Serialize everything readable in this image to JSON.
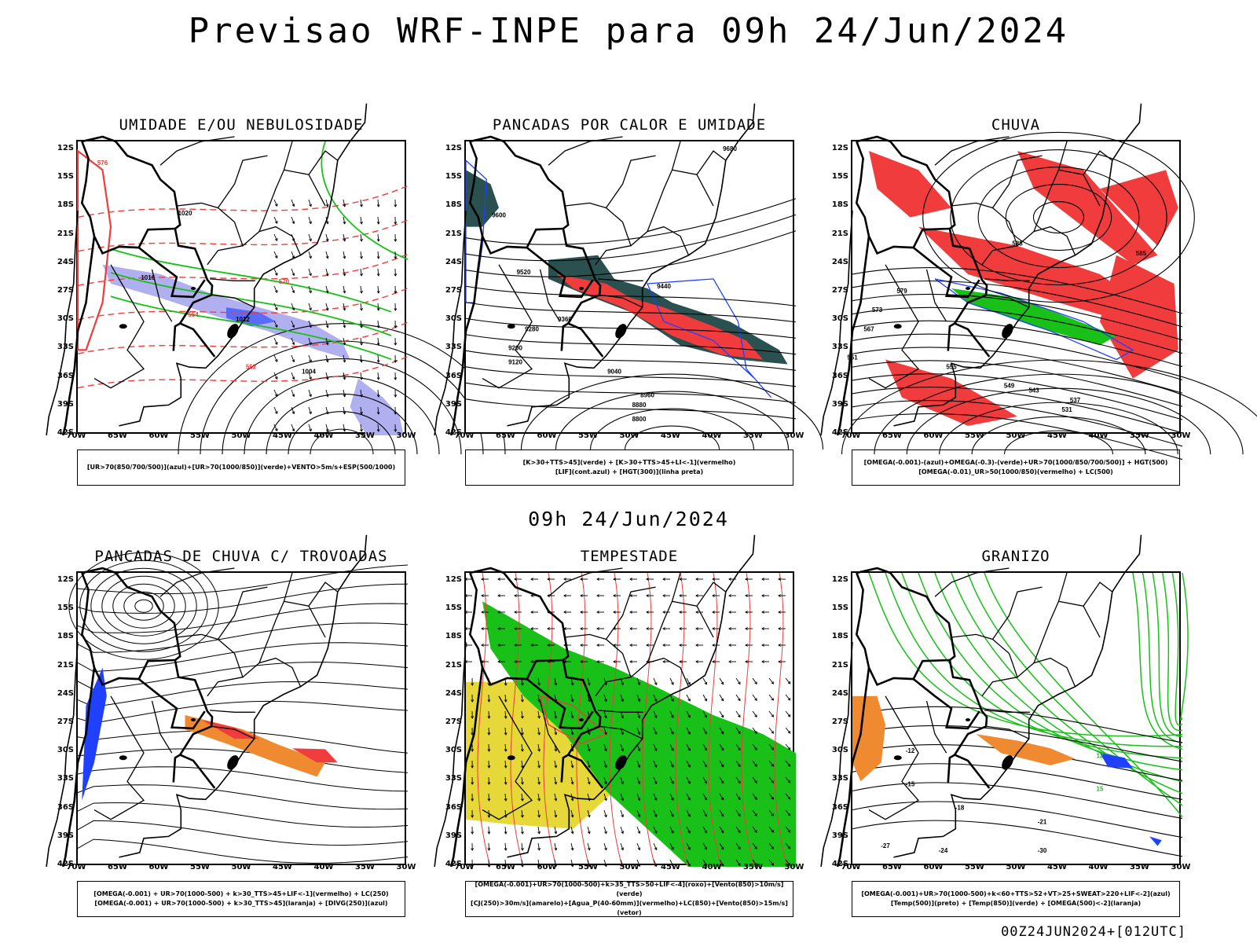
{
  "title": "Previsao WRF-INPE  para 09h 24/Jun/2024",
  "mid_title": "09h 24/Jun/2024",
  "footer": "00Z24JUN2024+[012UTC]",
  "lat_labels": [
    "12S",
    "15S",
    "18S",
    "21S",
    "24S",
    "27S",
    "30S",
    "33S",
    "36S",
    "39S",
    "42S"
  ],
  "lon_labels": [
    "70W",
    "65W",
    "60W",
    "55W",
    "50W",
    "45W",
    "40W",
    "35W",
    "30W"
  ],
  "colors": {
    "red": "#f03c3c",
    "green": "#18c018",
    "blue": "#2040ff",
    "lavender": "#b0b0f0",
    "darkteal": "#2a5050",
    "yellow": "#e6d838",
    "orange": "#f08a30"
  },
  "panels": [
    {
      "title": "UMIDADE E/OU NEBULOSIDADE",
      "legend": [
        "[UR>70(850/700/500)](azul)+[UR>70(1000/850)](verde)+VENTO>5m/s+ESP(500/1000)"
      ],
      "labels": [
        {
          "t": "1020",
          "k": "iso"
        },
        {
          "t": "1016",
          "k": "iso"
        },
        {
          "t": "1012",
          "k": "iso"
        },
        {
          "t": "1004",
          "k": "iso"
        },
        {
          "t": "576",
          "k": "red"
        },
        {
          "t": "570",
          "k": "red"
        },
        {
          "t": "564",
          "k": "red"
        },
        {
          "t": "552",
          "k": "red"
        }
      ]
    },
    {
      "title": "PANCADAS POR CALOR E UMIDADE",
      "legend": [
        "[K>30+TTS>45](verde) + [K>30+TTS>45+LI<-1](vermelho)",
        "[LIF](cont.azul) + [HGT(300)](linha preta)"
      ],
      "labels": [
        {
          "t": "9680",
          "k": "iso"
        },
        {
          "t": "9600",
          "k": "iso"
        },
        {
          "t": "9520",
          "k": "iso"
        },
        {
          "t": "9440",
          "k": "iso"
        },
        {
          "t": "9360",
          "k": "iso"
        },
        {
          "t": "9280",
          "k": "iso"
        },
        {
          "t": "9200",
          "k": "iso"
        },
        {
          "t": "9120",
          "k": "iso"
        },
        {
          "t": "9040",
          "k": "iso"
        },
        {
          "t": "8960",
          "k": "iso"
        },
        {
          "t": "8880",
          "k": "iso"
        },
        {
          "t": "8800",
          "k": "iso"
        }
      ]
    },
    {
      "title": "CHUVA",
      "legend": [
        "[OMEGA(-0.001)-(azul)+OMEGA(-0.3)-(verde)+UR>70(1000/850/700/500)] + HGT(500)",
        "[OMEGA(-0.01)_UR>50(1000/850)(vermelho) + LC(500)"
      ],
      "labels": [
        {
          "t": "588",
          "k": "iso"
        },
        {
          "t": "585",
          "k": "iso"
        },
        {
          "t": "579",
          "k": "iso"
        },
        {
          "t": "573",
          "k": "iso"
        },
        {
          "t": "567",
          "k": "iso"
        },
        {
          "t": "561",
          "k": "iso"
        },
        {
          "t": "555",
          "k": "iso"
        },
        {
          "t": "549",
          "k": "iso"
        },
        {
          "t": "543",
          "k": "iso"
        },
        {
          "t": "537",
          "k": "iso"
        },
        {
          "t": "531",
          "k": "iso"
        }
      ]
    },
    {
      "title": "PANCADAS DE CHUVA C/ TROVOADAS",
      "legend": [
        "[OMEGA(-0.001) + UR>70(1000-500) + k>30_TTS>45+LIF<-1](vermelho) + LC(250)",
        "[OMEGA(-0.001) + UR>70(1000-500) + k>30_TTS>45](laranja) + [DIVG(250)](azul)"
      ],
      "labels": []
    },
    {
      "title": "TEMPESTADE",
      "legend": [
        "[OMEGA(-0.001)+UR>70(1000-500)+k>35_TTS>50+LIF<-4](roxo)+[Vento(850)>10m/s](verde)",
        "[CJ(250)>30m/s](amarelo)+[Agua_P(40-60mm)](vermelho)+LC(850)+[Vento(850)>15m/s](vetor)"
      ],
      "labels": []
    },
    {
      "title": "GRANIZO",
      "legend": [
        "[OMEGA(-0.001)+UR>70(1000-500)+k<60+TTS>52+VT>25+SWEAT>220+LIF<-2](azul)",
        "[Temp(500)](preto) + [Temp(850)](verde) + [OMEGA(500)<-2](laranja)"
      ],
      "labels": [
        {
          "t": "-12",
          "k": "iso"
        },
        {
          "t": "-15",
          "k": "iso"
        },
        {
          "t": "-18",
          "k": "iso"
        },
        {
          "t": "-21",
          "k": "iso"
        },
        {
          "t": "-24",
          "k": "iso"
        },
        {
          "t": "-27",
          "k": "iso"
        },
        {
          "t": "-30",
          "k": "iso"
        },
        {
          "t": "12",
          "k": "green"
        },
        {
          "t": "15",
          "k": "green"
        }
      ]
    }
  ]
}
